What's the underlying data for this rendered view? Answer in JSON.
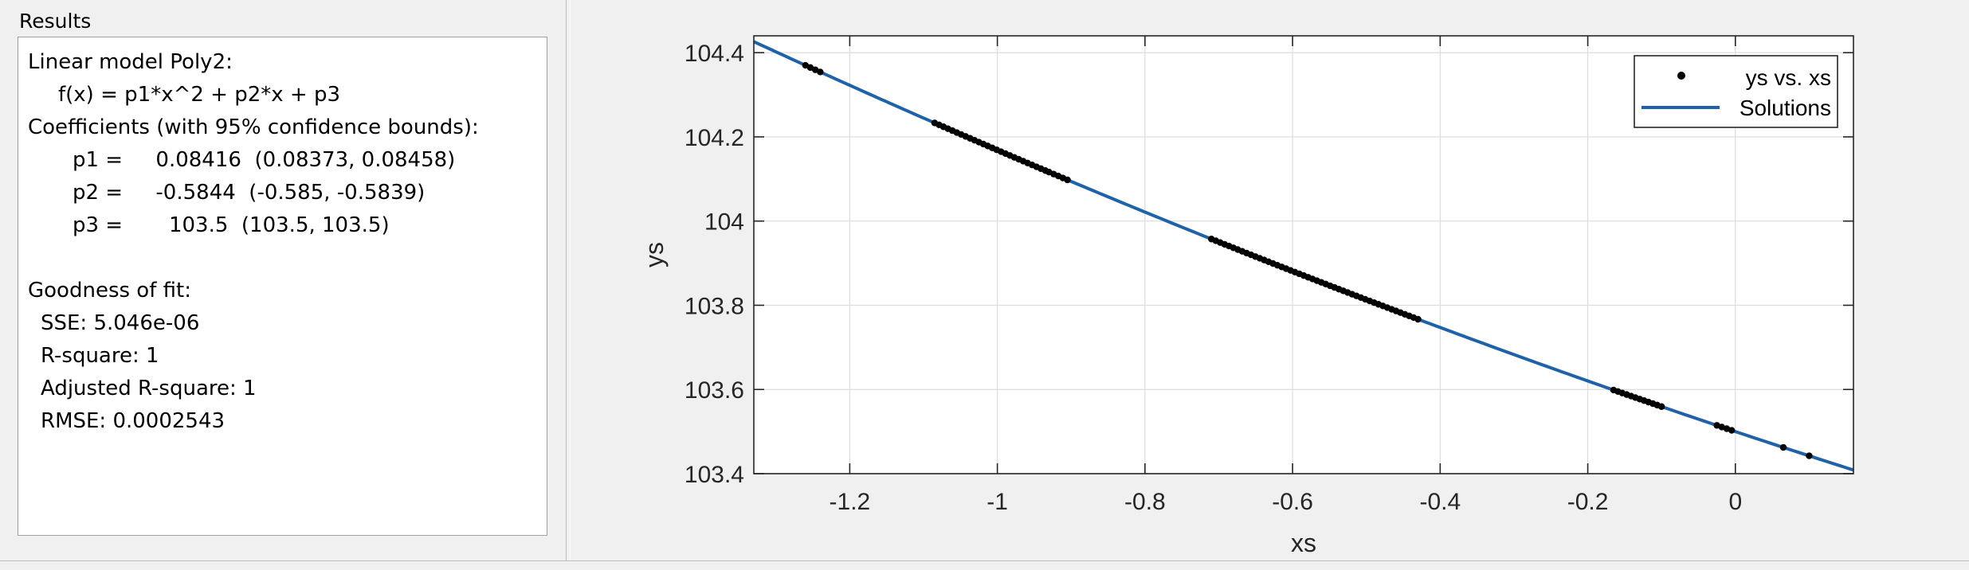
{
  "results": {
    "title": "Results",
    "lines": [
      "Linear model Poly2:",
      "f(x) = p1*x^2 + p2*x + p3",
      "Coefficients (with 95% confidence bounds):",
      "p1 =     0.08416  (0.08373, 0.08458)",
      "p2 =     -0.5844  (-0.585, -0.5839)",
      "p3 =       103.5  (103.5, 103.5)",
      "Goodness of fit:",
      "SSE: 5.046e-06",
      "R-square: 1",
      "Adjusted R-square: 1",
      "RMSE: 0.0002543"
    ]
  },
  "chart_data": {
    "type": "scatter",
    "xlabel": "xs",
    "ylabel": "ys",
    "xlim": [
      -1.33,
      0.16
    ],
    "ylim": [
      103.4,
      104.44
    ],
    "xticks": [
      -1.2,
      -1,
      -0.8,
      -0.6,
      -0.4,
      -0.2,
      0
    ],
    "yticks": [
      103.4,
      103.6,
      103.8,
      104,
      104.2,
      104.4
    ],
    "xtick_labels": [
      "-1.2",
      "-1",
      "-0.8",
      "-0.6",
      "-0.4",
      "-0.2",
      "0"
    ],
    "ytick_labels": [
      "103.4",
      "103.6",
      "103.8",
      "104",
      "104.2",
      "104.4"
    ],
    "grid": true,
    "legend_position": "top-right",
    "fit_coefficients": {
      "p1": 0.08416,
      "p2": -0.5844,
      "p3": 103.5
    },
    "point_ranges": [
      [
        -1.26,
        -1.24
      ],
      [
        -1.085,
        -0.935
      ],
      [
        -0.93,
        -0.905
      ],
      [
        -0.71,
        -0.43
      ],
      [
        -0.165,
        -0.1
      ],
      [
        -0.025,
        -0.005
      ],
      [
        0.065,
        0.065
      ],
      [
        0.1,
        0.1
      ]
    ],
    "series": [
      {
        "name": "ys vs. xs",
        "type": "scatter",
        "color": "#000000"
      },
      {
        "name": "Solutions",
        "type": "line",
        "color": "#1f62a8"
      }
    ]
  }
}
